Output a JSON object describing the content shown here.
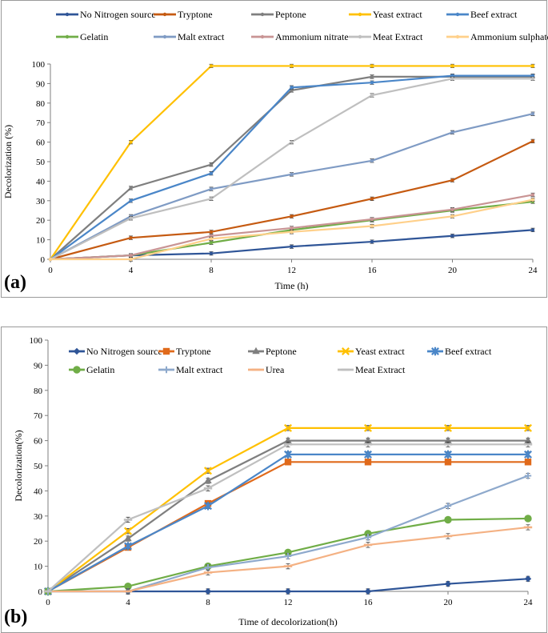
{
  "chart_data": [
    {
      "type": "line",
      "panel_label": "(a)",
      "title": "",
      "xlabel": "Time (h)",
      "ylabel": "Decolorization (%)",
      "xlim": [
        0,
        24
      ],
      "ylim": [
        0,
        100
      ],
      "xticks": [
        0,
        4,
        8,
        12,
        16,
        20,
        24
      ],
      "yticks": [
        0,
        10,
        20,
        30,
        40,
        50,
        60,
        70,
        80,
        90,
        100
      ],
      "grid": false,
      "legend_position": "top",
      "x": [
        0,
        4,
        8,
        12,
        16,
        20,
        24
      ],
      "series": [
        {
          "name": "No Nitrogen source",
          "color": "#2f5597",
          "values": [
            0,
            2,
            3,
            6.5,
            9,
            12,
            15
          ]
        },
        {
          "name": "Tryptone",
          "color": "#c55a11",
          "values": [
            0,
            11,
            14,
            22,
            31,
            40.5,
            60.5
          ]
        },
        {
          "name": "Peptone",
          "color": "#7f7f7f",
          "values": [
            0,
            36.5,
            48.5,
            86.5,
            93.5,
            93.5,
            93.5
          ]
        },
        {
          "name": "Yeast extract",
          "color": "#ffc000",
          "values": [
            0,
            60,
            99,
            99,
            99,
            99,
            99
          ]
        },
        {
          "name": "Beef extract",
          "color": "#4a86c8",
          "values": [
            0,
            30,
            44,
            88,
            90.5,
            94,
            94
          ]
        },
        {
          "name": "Gelatin",
          "color": "#70ad47",
          "values": [
            0,
            2,
            8.5,
            15,
            20,
            25,
            29.5
          ]
        },
        {
          "name": "Malt extract",
          "color": "#7f9bc4",
          "values": [
            0,
            22,
            36,
            43.5,
            50.5,
            65,
            74.5
          ]
        },
        {
          "name": "Ammonium nitrate",
          "color": "#c99494",
          "values": [
            0,
            2,
            12,
            16,
            20.5,
            25.5,
            33
          ]
        },
        {
          "name": "Meat Extract",
          "color": "#bfbfbf",
          "values": [
            0,
            21,
            31,
            60,
            84,
            92.5,
            92.5
          ]
        },
        {
          "name": "Ammonium sulphate",
          "color": "#ffd08a",
          "values": [
            0,
            0,
            10.5,
            14,
            17,
            22,
            30.5
          ]
        }
      ]
    },
    {
      "type": "line",
      "panel_label": "(b)",
      "title": "",
      "xlabel": "Time of decolorization(h)",
      "ylabel": "Decolorization(%)",
      "xlim": [
        0,
        24
      ],
      "ylim": [
        0,
        100
      ],
      "xticks": [
        0,
        4,
        8,
        12,
        16,
        20,
        24
      ],
      "yticks": [
        0,
        10,
        20,
        30,
        40,
        50,
        60,
        70,
        80,
        90,
        100
      ],
      "grid": false,
      "legend_position": "top",
      "x": [
        0,
        4,
        8,
        12,
        16,
        20,
        24
      ],
      "series": [
        {
          "name": "No Nitrogen source",
          "color": "#2f5597",
          "marker": "diamond",
          "values": [
            0,
            0,
            0,
            0,
            0,
            3,
            5
          ]
        },
        {
          "name": "Tryptone",
          "color": "#e06a1b",
          "marker": "square",
          "values": [
            0,
            17.5,
            35,
            51.5,
            51.5,
            51.5,
            51.5
          ]
        },
        {
          "name": "Peptone",
          "color": "#7f7f7f",
          "marker": "triangle",
          "values": [
            0,
            21,
            44,
            60,
            60,
            60,
            60
          ]
        },
        {
          "name": "Yeast extract",
          "color": "#ffc000",
          "marker": "x",
          "values": [
            0,
            24,
            48,
            65,
            65,
            65,
            65
          ]
        },
        {
          "name": "Beef extract",
          "color": "#4a86c8",
          "marker": "star",
          "values": [
            0,
            18,
            34,
            54.5,
            54.5,
            54.5,
            54.5
          ]
        },
        {
          "name": "Gelatin",
          "color": "#70ad47",
          "marker": "circle",
          "values": [
            0,
            2,
            10,
            15.5,
            23,
            28.5,
            29
          ]
        },
        {
          "name": "Malt extract",
          "color": "#8ea9cc",
          "marker": "plus",
          "values": [
            0,
            0,
            9.5,
            14,
            21.5,
            34,
            46
          ]
        },
        {
          "name": "Urea",
          "color": "#f4b183",
          "marker": "dash",
          "values": [
            0,
            0,
            7.5,
            10,
            18.5,
            22,
            25.5
          ]
        },
        {
          "name": "Meat Extract",
          "color": "#bfbfbf",
          "marker": "dash",
          "values": [
            0,
            28.5,
            41,
            58.5,
            58.5,
            58.5,
            58.5
          ]
        }
      ]
    }
  ]
}
